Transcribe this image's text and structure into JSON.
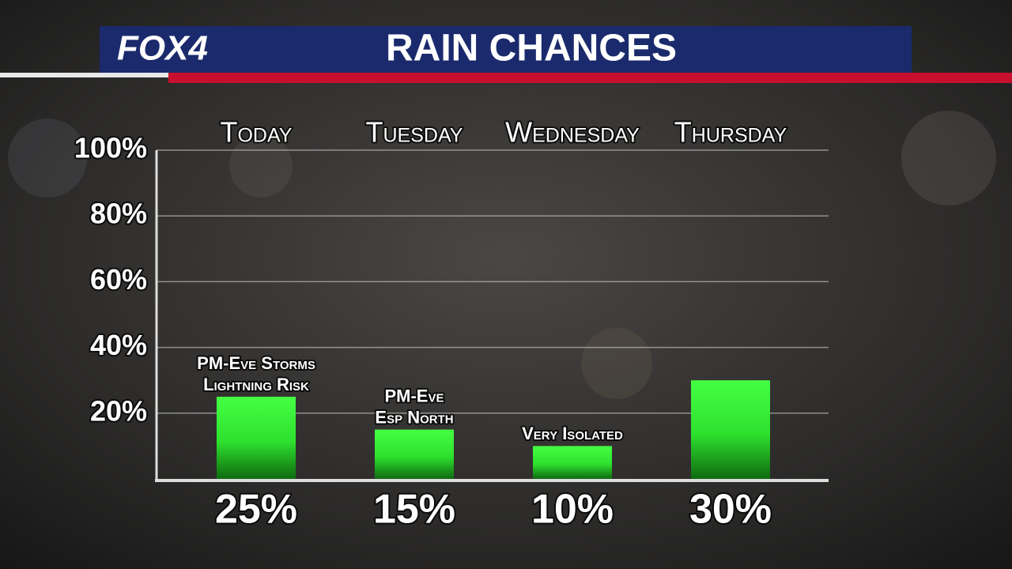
{
  "network": "FOX4",
  "chart_data": {
    "type": "bar",
    "title": "RAIN CHANCES",
    "categories": [
      "Today",
      "Tuesday",
      "Wednesday",
      "Thursday"
    ],
    "values": [
      25,
      15,
      10,
      30
    ],
    "value_labels": [
      "25%",
      "15%",
      "10%",
      "30%"
    ],
    "annotations": [
      [
        "PM-Eve Storms",
        "Lightning Risk"
      ],
      [
        "PM-Eve",
        "Esp North"
      ],
      [
        "Very Isolated"
      ],
      null
    ],
    "color": "#33ff33",
    "ylim": [
      0,
      100
    ],
    "yticks": [
      {
        "value": 20,
        "label": "20%"
      },
      {
        "value": 40,
        "label": "40%"
      },
      {
        "value": 60,
        "label": "60%"
      },
      {
        "value": 80,
        "label": "80%"
      },
      {
        "value": 100,
        "label": "100%"
      }
    ],
    "grid": true
  }
}
